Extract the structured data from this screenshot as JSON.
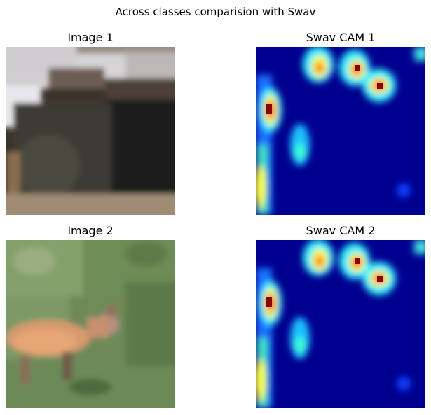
{
  "figure": {
    "title": "Across classes comparision with Swav"
  },
  "panels": [
    {
      "title": "Image 1"
    },
    {
      "title": "Swav CAM 1"
    },
    {
      "title": "Image 2"
    },
    {
      "title": "Swav CAM 2"
    }
  ],
  "colors": {
    "cam_background": "#00008f",
    "cam_hot": "#8b0000"
  }
}
